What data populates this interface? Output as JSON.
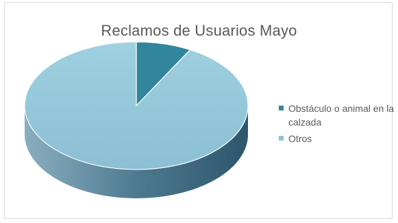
{
  "chart_data": {
    "type": "pie",
    "title": "Reclamos de Usuarios Mayo",
    "categories": [
      "Obstáculo o animal en la calzada",
      "Otros"
    ],
    "values": [
      8,
      92
    ],
    "colors": [
      "#31859c",
      "#93c3d6"
    ],
    "legend_position": "right",
    "style": "3d"
  }
}
